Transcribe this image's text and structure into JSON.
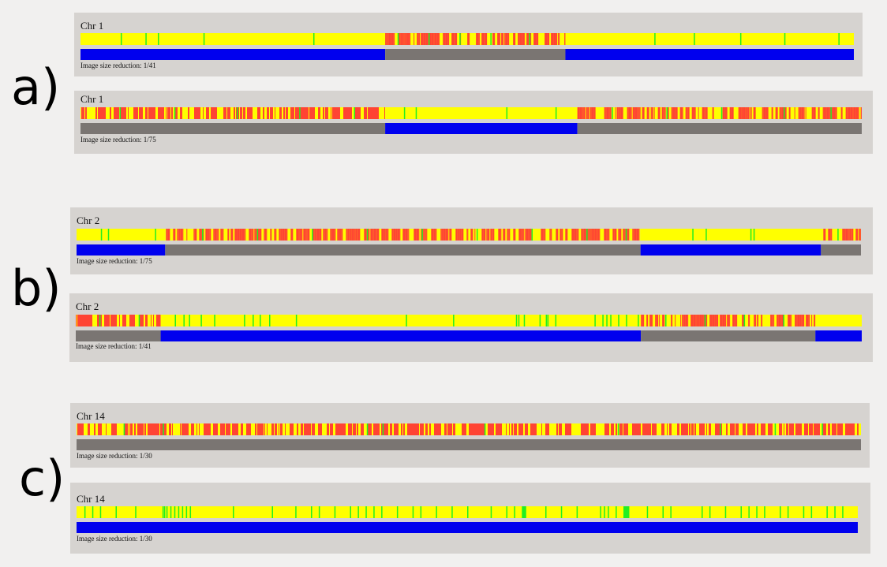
{
  "colors": {
    "homozygous": "#ffff00",
    "heterozygous": "#ff4433",
    "green_mark": "#22ee22",
    "roh": "#0000ee",
    "non_roh": "#7a7572",
    "panel_bg": "#d6d3d0"
  },
  "groups": [
    {
      "label": "a)",
      "panels": [
        {
          "chromosome": "Chr 1",
          "caption": "Image size reduction: 1/41",
          "segments": [
            {
              "from": 0,
              "to": 0.394,
              "kind": "roh",
              "greens": [
                0.052,
                0.084,
                0.1,
                0.159,
                0.301
              ]
            },
            {
              "from": 0.394,
              "to": 0.627,
              "kind": "non_roh",
              "greens": [
                0.41,
                0.45,
                0.49,
                0.53,
                0.58
              ]
            },
            {
              "from": 0.627,
              "to": 1,
              "kind": "roh",
              "greens": [
                0.742,
                0.793,
                0.853,
                0.91,
                0.98
              ]
            }
          ]
        },
        {
          "chromosome": "Chr 1",
          "caption": "Image size reduction: 1/75",
          "segments": [
            {
              "from": 0,
              "to": 0.39,
              "kind": "non_roh",
              "greens": [
                0.05,
                0.12,
                0.2,
                0.28,
                0.35
              ]
            },
            {
              "from": 0.39,
              "to": 0.636,
              "kind": "roh",
              "greens": [
                0.414,
                0.429,
                0.545,
                0.608
              ]
            },
            {
              "from": 0.636,
              "to": 1,
              "kind": "non_roh",
              "greens": [
                0.68,
                0.75,
                0.82,
                0.9,
                0.96
              ]
            }
          ]
        }
      ]
    },
    {
      "label": "b)",
      "panels": [
        {
          "chromosome": "Chr 2",
          "caption": "Image size reduction: 1/75",
          "segments": [
            {
              "from": 0,
              "to": 0.113,
              "kind": "roh",
              "greens": [
                0.031,
                0.04,
                0.1
              ]
            },
            {
              "from": 0.113,
              "to": 0.719,
              "kind": "non_roh",
              "greens": [
                0.16,
                0.23,
                0.3,
                0.37,
                0.44,
                0.51,
                0.58,
                0.65,
                0.7
              ]
            },
            {
              "from": 0.719,
              "to": 0.949,
              "kind": "roh",
              "greens": [
                0.785,
                0.802,
                0.859,
                0.863
              ]
            },
            {
              "from": 0.949,
              "to": 1,
              "kind": "non_roh",
              "greens": [
                0.97
              ]
            }
          ]
        },
        {
          "chromosome": "Chr 2",
          "caption": "Image size reduction: 1/41",
          "segments": [
            {
              "from": 0,
              "to": 0.108,
              "kind": "non_roh",
              "greens": [
                0.03,
                0.08
              ]
            },
            {
              "from": 0.108,
              "to": 0.719,
              "kind": "roh",
              "greens": [
                0.126,
                0.137,
                0.144,
                0.159,
                0.176,
                0.214,
                0.225,
                0.234,
                0.246,
                0.28,
                0.42,
                0.48,
                0.56,
                0.563,
                0.57,
                0.59,
                0.598,
                0.6,
                0.61,
                0.66,
                0.67,
                0.675,
                0.68,
                0.69,
                0.7,
                0.715
              ]
            },
            {
              "from": 0.719,
              "to": 0.941,
              "kind": "non_roh",
              "greens": [
                0.75,
                0.8,
                0.85,
                0.9
              ]
            },
            {
              "from": 0.941,
              "to": 1,
              "kind": "roh",
              "greens": []
            }
          ]
        }
      ]
    },
    {
      "label": "c)",
      "panels": [
        {
          "chromosome": "Chr 14",
          "caption": "Image size reduction: 1/30",
          "segments": [
            {
              "from": 0,
              "to": 1,
              "kind": "non_roh",
              "greens": [
                0.06,
                0.11,
                0.37,
                0.39,
                0.52,
                0.69,
                0.82,
                0.89,
                0.95
              ]
            }
          ]
        },
        {
          "chromosome": "Chr 14",
          "caption": "Image size reduction: 1/30",
          "segments": [
            {
              "from": 0,
              "to": 1,
              "kind": "roh",
              "greens": [
                0.01,
                0.02,
                0.03,
                0.05,
                0.075,
                0.11,
                0.112,
                0.115,
                0.12,
                0.125,
                0.13,
                0.135,
                0.14,
                0.145,
                0.2,
                0.25,
                0.28,
                0.3,
                0.31,
                0.33,
                0.35,
                0.36,
                0.37,
                0.38,
                0.39,
                0.41,
                0.43,
                0.44,
                0.46,
                0.48,
                0.5,
                0.53,
                0.55,
                0.56,
                0.57,
                0.571,
                0.572,
                0.573,
                0.574,
                0.6,
                0.62,
                0.64,
                0.67,
                0.675,
                0.68,
                0.69,
                0.7,
                0.701,
                0.702,
                0.703,
                0.704,
                0.705,
                0.706,
                0.73,
                0.75,
                0.76,
                0.8,
                0.81,
                0.83,
                0.85,
                0.86,
                0.87,
                0.88,
                0.9,
                0.91,
                0.93,
                0.94,
                0.96,
                0.97,
                0.98
              ]
            }
          ]
        }
      ]
    }
  ]
}
